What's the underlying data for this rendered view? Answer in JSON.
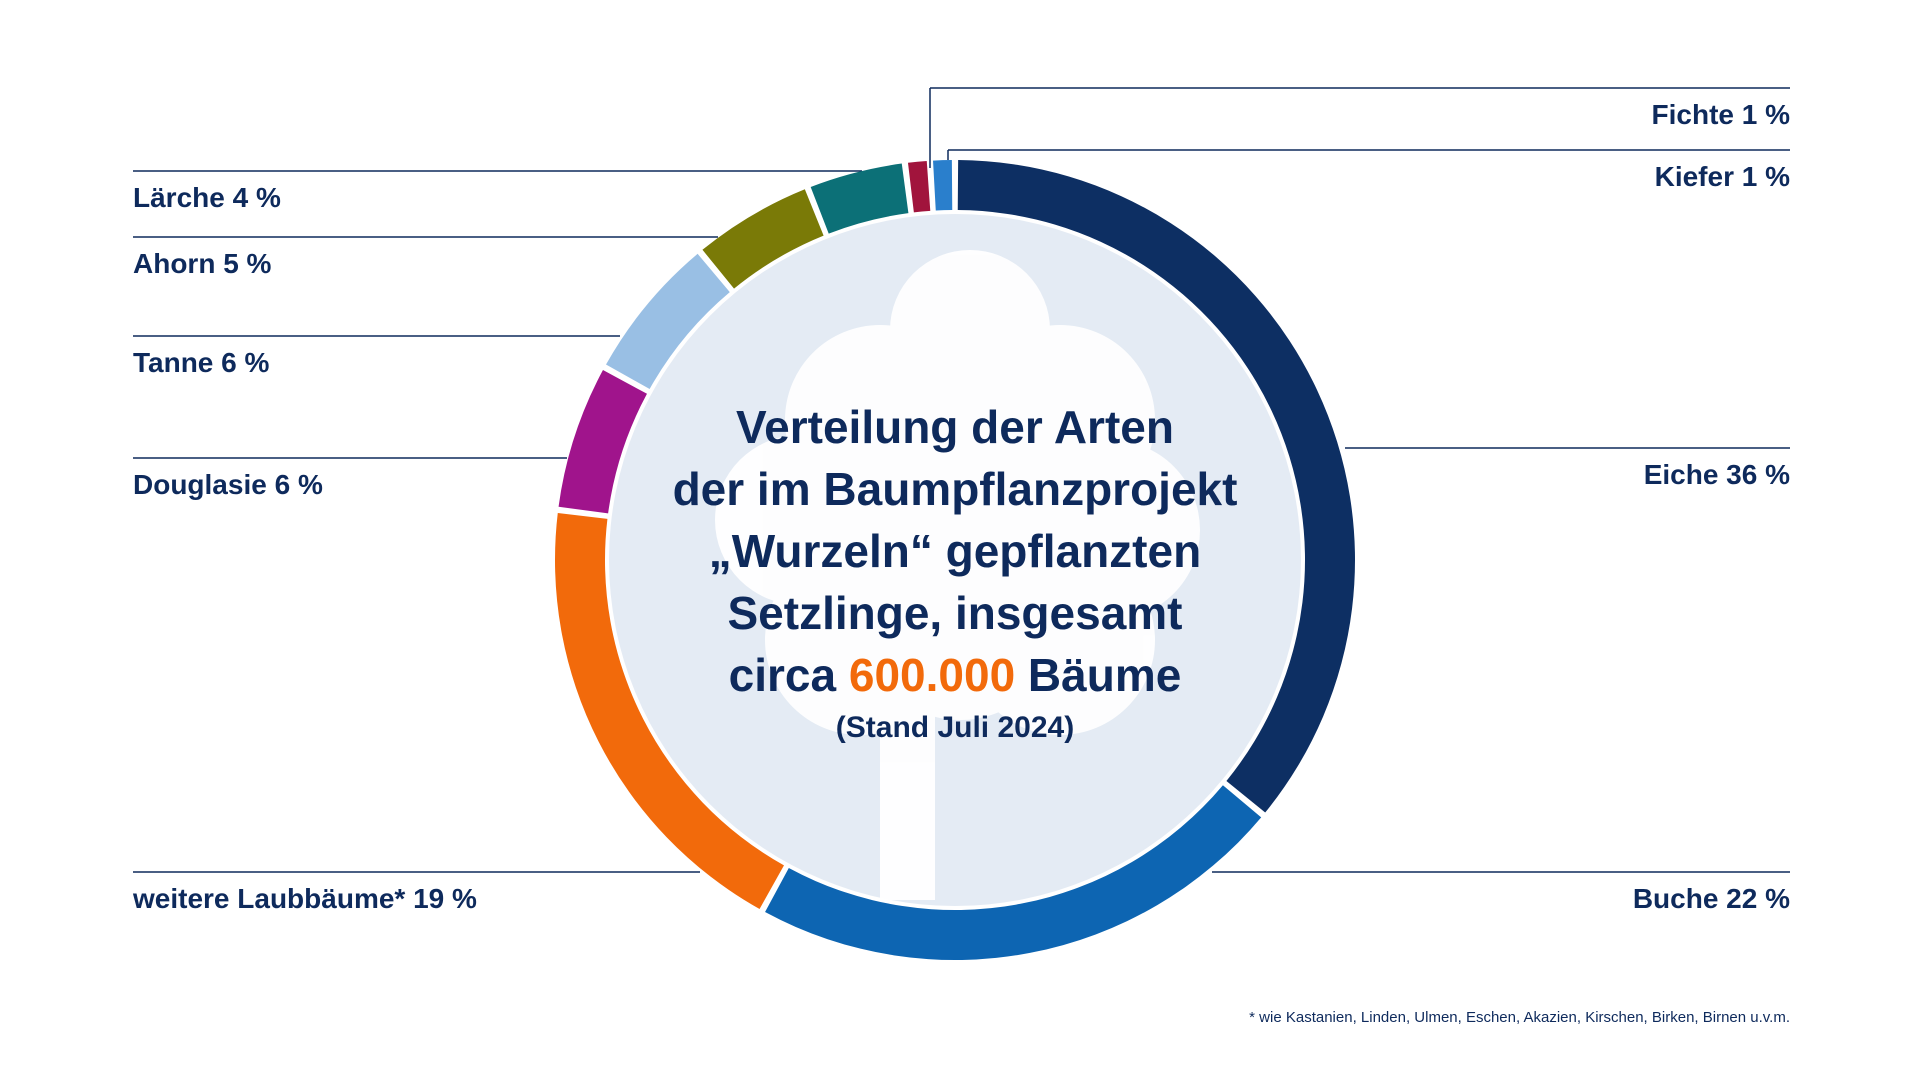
{
  "chart_data": {
    "type": "donut",
    "title_lines": [
      "Verteilung der Arten",
      "der im Baumpflanzprojekt",
      "„Wurzeln“ gepflanzten",
      "Setzlinge, insgesamt"
    ],
    "title_last_line": {
      "prefix": "circa ",
      "highlight": "600.000",
      "suffix": " Bäume"
    },
    "subtitle": "(Stand Juli 2024)",
    "footnote": "* wie Kastanien, Linden, Ulmen, Eschen, Akazien, Kirschen, Birken, Birnen u.v.m.",
    "colors": {
      "text": "#0e2a5c",
      "highlight": "#f26a0b",
      "inner_disc": "#e4ebf4",
      "leader": "#0e2a5c"
    },
    "slices": [
      {
        "label": "Eiche 36 %",
        "value": 36,
        "color": "#0d2f63",
        "side": "right"
      },
      {
        "label": "Buche 22 %",
        "value": 22,
        "color": "#0d65b2",
        "side": "right"
      },
      {
        "label": "weitere Laubbäume* 19 %",
        "value": 19,
        "color": "#f26a0b",
        "side": "left"
      },
      {
        "label": "Douglasie 6 %",
        "value": 6,
        "color": "#a0148c",
        "side": "left"
      },
      {
        "label": "Tanne 6 %",
        "value": 6,
        "color": "#99bfe4",
        "side": "left"
      },
      {
        "label": "Ahorn 5 %",
        "value": 5,
        "color": "#7a7a07",
        "side": "left"
      },
      {
        "label": "Lärche 4 %",
        "value": 4,
        "color": "#0c7077",
        "side": "left"
      },
      {
        "label": "Fichte 1 %",
        "value": 1,
        "color": "#a1143c",
        "side": "right"
      },
      {
        "label": "Kiefer 1 %",
        "value": 1,
        "color": "#2a7fcc",
        "side": "right"
      }
    ]
  }
}
